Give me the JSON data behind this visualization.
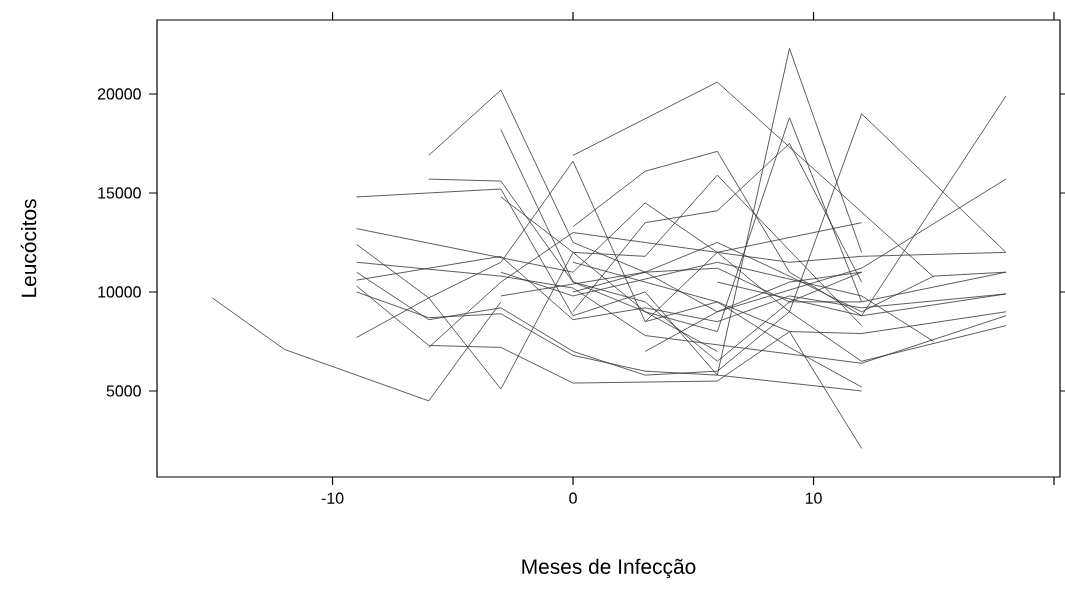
{
  "chart_data": {
    "type": "line",
    "xlabel": "Meses de Infecção",
    "ylabel": "Leucócitos",
    "xlim": [
      -17.3,
      20.25
    ],
    "ylim": [
      656,
      23737
    ],
    "xticks": [
      -10,
      0,
      10,
      {
        "value": 20,
        "label": null
      }
    ],
    "yticks": [
      5000,
      10000,
      15000,
      20000
    ],
    "grid": false,
    "marker": "none",
    "line_style": "solid",
    "series": [
      {
        "color": "#333333",
        "x": [
          -15,
          -12,
          -6,
          -3
        ],
        "values": [
          9700,
          7100,
          4500,
          9500
        ]
      },
      {
        "color": "#333333",
        "x": [
          -6,
          -3,
          0,
          3,
          6,
          9,
          12
        ],
        "values": [
          16900,
          20200,
          12500,
          11000,
          9000,
          10500,
          11000
        ]
      },
      {
        "color": "#333333",
        "x": [
          0,
          6,
          15
        ],
        "values": [
          16900,
          20600,
          10750
        ]
      },
      {
        "color": "#333333",
        "x": [
          -9,
          -3,
          0,
          3,
          6,
          9,
          12
        ],
        "values": [
          14800,
          15200,
          8800,
          10000,
          5800,
          22300,
          12000
        ]
      },
      {
        "color": "#333333",
        "x": [
          -6,
          -3,
          0,
          3,
          6,
          9,
          12
        ],
        "values": [
          15700,
          15600,
          10500,
          9000,
          8000,
          18800,
          9500
        ]
      },
      {
        "color": "#333333",
        "x": [
          -9,
          0,
          3,
          6,
          12
        ],
        "values": [
          13200,
          11000,
          14500,
          12000,
          13500
        ]
      },
      {
        "color": "#333333",
        "x": [
          -9,
          -6,
          -3,
          0,
          3,
          6,
          9,
          12
        ],
        "values": [
          12400,
          9700,
          11500,
          16600,
          8500,
          9500,
          8000,
          2100
        ]
      },
      {
        "color": "#333333",
        "x": [
          -9,
          -6,
          -3,
          0,
          3,
          6,
          9,
          12,
          18
        ],
        "values": [
          11000,
          8600,
          9200,
          7000,
          5800,
          6000,
          9000,
          6500,
          8300
        ]
      },
      {
        "color": "#333333",
        "x": [
          -9,
          -6,
          -3,
          0,
          6,
          9,
          12,
          18
        ],
        "values": [
          10300,
          7300,
          7200,
          5400,
          5500,
          8000,
          7900,
          9000
        ]
      },
      {
        "color": "#333333",
        "x": [
          -9,
          -6,
          -3,
          0,
          3,
          6
        ],
        "values": [
          7700,
          9700,
          5100,
          12000,
          9000,
          7000
        ]
      },
      {
        "color": "#333333",
        "x": [
          -9,
          -6,
          -3,
          0,
          3,
          6,
          12
        ],
        "values": [
          10000,
          8700,
          8900,
          6800,
          6000,
          5800,
          5000
        ]
      },
      {
        "color": "#333333",
        "x": [
          -9,
          -3,
          0,
          3,
          6,
          9,
          12,
          18
        ],
        "values": [
          10600,
          11800,
          8600,
          9200,
          8500,
          9800,
          9200,
          9900
        ]
      },
      {
        "color": "#333333",
        "x": [
          -6,
          -3,
          0,
          3,
          6,
          9,
          12,
          18
        ],
        "values": [
          7200,
          10500,
          13000,
          12500,
          12000,
          11500,
          11800,
          12000
        ]
      },
      {
        "color": "#333333",
        "x": [
          -3,
          0,
          3,
          6,
          12
        ],
        "values": [
          14800,
          12000,
          11800,
          15900,
          8300
        ]
      },
      {
        "color": "#333333",
        "x": [
          -3,
          0,
          3,
          6,
          9,
          12
        ],
        "values": [
          18200,
          10500,
          9500,
          6500,
          9500,
          11000
        ]
      },
      {
        "color": "#333333",
        "x": [
          0,
          3,
          6,
          9,
          12,
          18
        ],
        "values": [
          13300,
          16100,
          17100,
          11000,
          8800,
          9900
        ]
      },
      {
        "color": "#333333",
        "x": [
          0,
          3,
          6,
          9,
          12
        ],
        "values": [
          9000,
          13500,
          14100,
          17500,
          10500
        ]
      },
      {
        "color": "#333333",
        "x": [
          3,
          6,
          9,
          12,
          18
        ],
        "values": [
          8500,
          12000,
          9000,
          19000,
          12000
        ]
      },
      {
        "color": "#333333",
        "x": [
          6,
          12,
          18
        ],
        "values": [
          10500,
          8800,
          19900
        ]
      },
      {
        "color": "#333333",
        "x": [
          3,
          6,
          12,
          18
        ],
        "values": [
          7000,
          9000,
          11200,
          15700
        ]
      },
      {
        "color": "#333333",
        "x": [
          0,
          3,
          6,
          9,
          12,
          15,
          18
        ],
        "values": [
          10000,
          11000,
          12500,
          10800,
          9000,
          10800,
          11000
        ]
      },
      {
        "color": "#333333",
        "x": [
          -3,
          0,
          6,
          12,
          15
        ],
        "values": [
          11000,
          9800,
          11500,
          9800,
          7500
        ]
      },
      {
        "color": "#333333",
        "x": [
          0,
          6,
          9,
          12
        ],
        "values": [
          11500,
          9500,
          7200,
          5200
        ]
      },
      {
        "color": "#333333",
        "x": [
          -9,
          -3,
          0,
          3,
          12,
          18
        ],
        "values": [
          11500,
          10800,
          10200,
          7800,
          6400,
          8800
        ]
      },
      {
        "color": "#333333",
        "x": [
          -3,
          3,
          6,
          9,
          12,
          18
        ],
        "values": [
          9800,
          11000,
          11200,
          9500,
          9500,
          11000
        ]
      }
    ]
  }
}
